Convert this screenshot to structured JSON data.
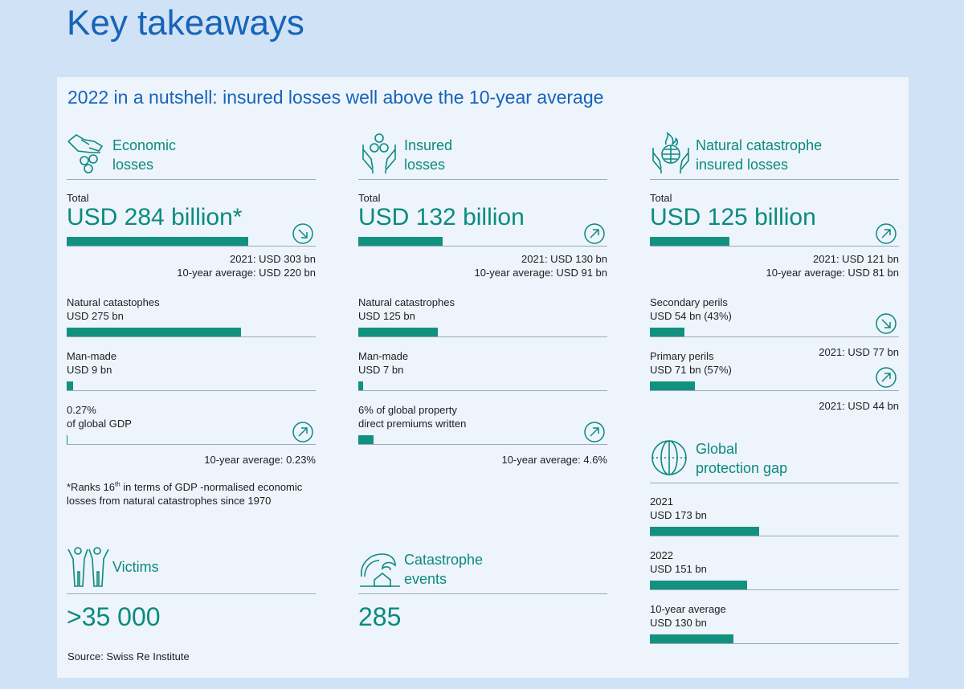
{
  "page_title": "Key takeaways",
  "subtitle": "2022 in a nutshell: insured losses well above the 10-year average",
  "colors": {
    "title_blue": "#1763b8",
    "teal": "#0c8a7e",
    "bar_teal": "#13917f",
    "background": "#cfe2f6",
    "panel": "#edf4fc"
  },
  "economic": {
    "heading": "Economic\nlosses",
    "icon": "hand-coins-icon",
    "total_label": "Total",
    "total_value": "USD 284 billion*",
    "total_bar_fraction": 0.73,
    "trend": "down",
    "note_2021": "2021: USD 303 bn",
    "note_avg": "10-year average: USD 220 bn",
    "natcat_label": "Natural catastophes",
    "natcat_value": "USD 275 bn",
    "natcat_bar_fraction": 0.7,
    "manmade_label": "Man-made",
    "manmade_value": "USD 9 bn",
    "manmade_bar_fraction": 0.025,
    "gdp_pct": "0.27%",
    "gdp_label": "of global GDP",
    "gdp_trend": "up",
    "gdp_avg": "10-year average: 0.23%",
    "footnote_pre": "*Ranks 16",
    "footnote_sup": "th",
    "footnote_post": " in terms of GDP -normalised economic losses from natural catastrophes since 1970"
  },
  "insured": {
    "heading": "Insured\nlosses",
    "icon": "hands-coins-icon",
    "total_label": "Total",
    "total_value": "USD 132 billion",
    "total_bar_fraction": 0.34,
    "trend": "up",
    "note_2021": "2021: USD 130 bn",
    "note_avg": "10-year average: USD 91 bn",
    "natcat_label": "Natural catastrophes",
    "natcat_value": "USD 125 bn",
    "natcat_bar_fraction": 0.32,
    "manmade_label": "Man-made",
    "manmade_value": "USD 7 bn",
    "manmade_bar_fraction": 0.02,
    "premium_label": "6% of global property\ndirect premiums written",
    "premium_bar_fraction": 0.06,
    "premium_trend": "up",
    "premium_avg": "10-year average: 4.6%"
  },
  "natcat_insured": {
    "heading": "Natural catastrophe\ninsured losses",
    "icon": "hands-globe-fire-icon",
    "total_label": "Total",
    "total_value": "USD 125 billion",
    "total_bar_fraction": 0.32,
    "trend": "up",
    "note_2021": "2021: USD 121 bn",
    "note_avg": "10-year average: USD 81 bn",
    "secondary_label": "Secondary perils",
    "secondary_value": "USD 54 bn (43%)",
    "secondary_bar_fraction": 0.14,
    "secondary_trend": "down",
    "secondary_2021": "2021: USD 77 bn",
    "primary_label": "Primary perils",
    "primary_value": "USD 71 bn (57%)",
    "primary_bar_fraction": 0.18,
    "primary_trend": "up",
    "primary_2021": "2021: USD 44 bn"
  },
  "protection_gap": {
    "heading": "Global\nprotection gap",
    "icon": "globe-icon",
    "items": [
      {
        "label": "2021",
        "value": "USD 173 bn",
        "bar_fraction": 0.44
      },
      {
        "label": "2022",
        "value": "USD 151 bn",
        "bar_fraction": 0.39
      },
      {
        "label": "10-year average",
        "value": "USD 130 bn",
        "bar_fraction": 0.335
      }
    ]
  },
  "victims": {
    "heading": "Victims",
    "icon": "people-icon",
    "value": ">35 000"
  },
  "events": {
    "heading": "Catastrophe\nevents",
    "icon": "wave-house-icon",
    "value": "285"
  },
  "source": "Source: Swiss Re Institute"
}
